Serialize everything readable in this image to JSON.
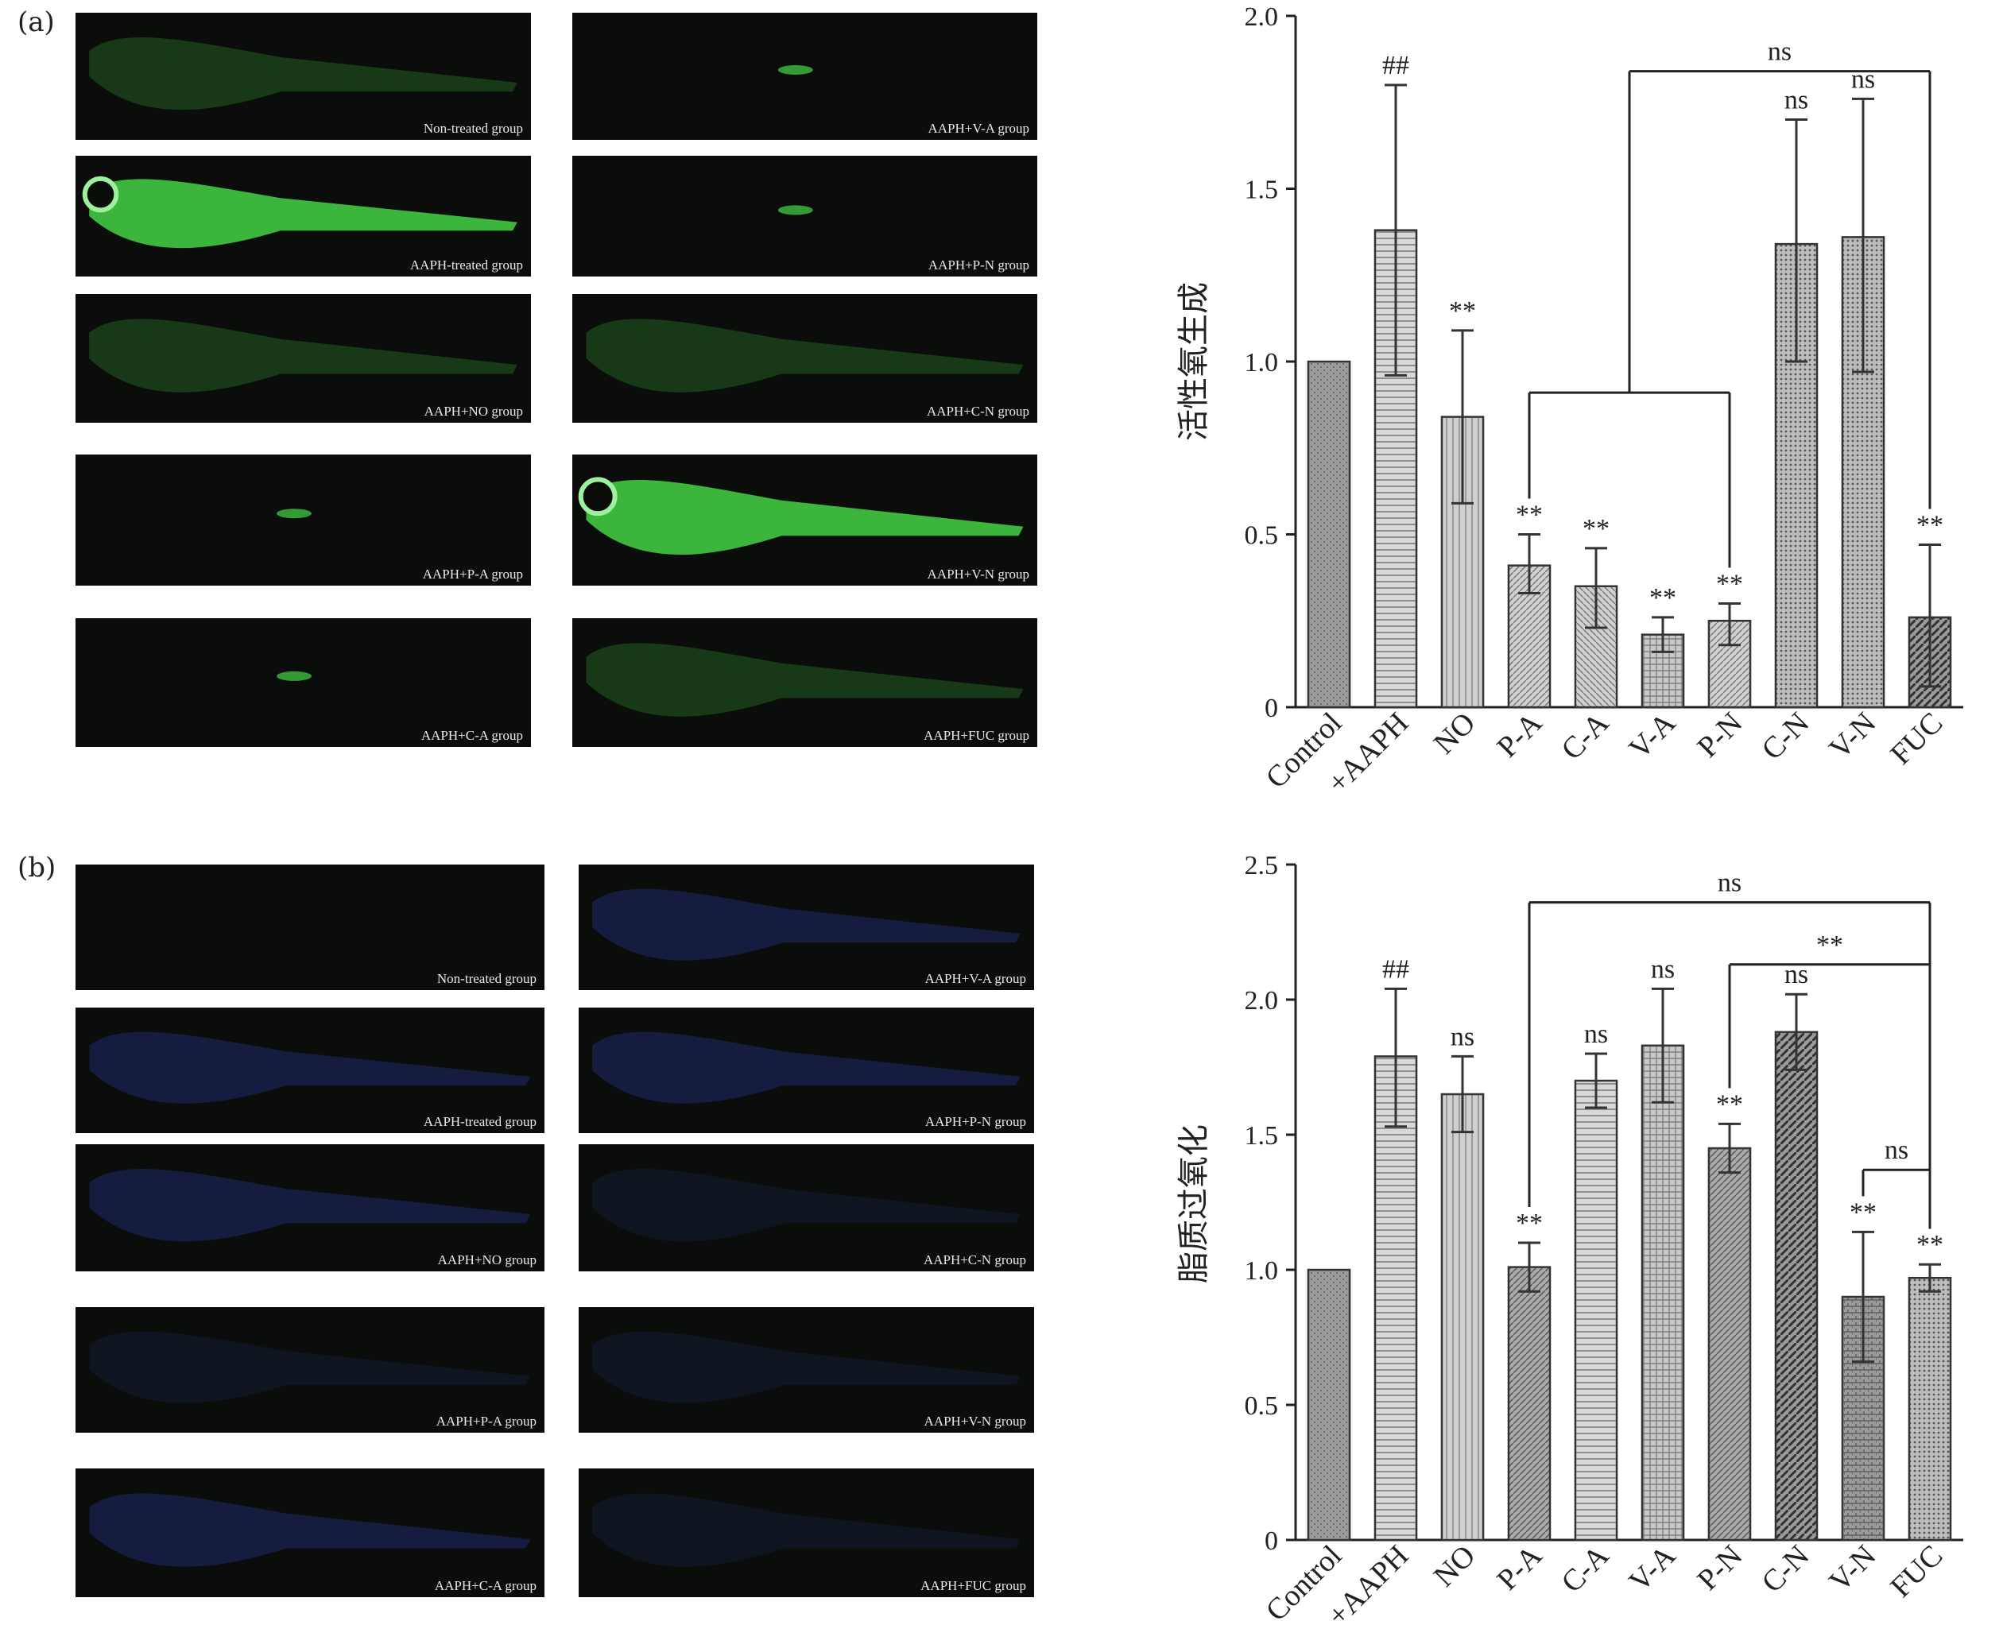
{
  "panel_labels": {
    "a": "(a)",
    "b": "(b)"
  },
  "panel_a_images": {
    "left": [
      {
        "caption": "Non-treated group",
        "glow": "faint"
      },
      {
        "caption": "AAPH-treated group",
        "glow": "bright"
      },
      {
        "caption": "AAPH+NO group",
        "glow": "faint"
      },
      {
        "caption": "AAPH+P-A group",
        "glow": "spot"
      },
      {
        "caption": "AAPH+C-A group",
        "glow": "spot"
      }
    ],
    "right": [
      {
        "caption": "AAPH+V-A group",
        "glow": "spot"
      },
      {
        "caption": "AAPH+P-N group",
        "glow": "spot"
      },
      {
        "caption": "AAPH+C-N group",
        "glow": "faint"
      },
      {
        "caption": "AAPH+V-N group",
        "glow": "bright"
      },
      {
        "caption": "AAPH+FUC group",
        "glow": "faint"
      }
    ],
    "fluorescence_color": "#3fbf3f"
  },
  "panel_b_images": {
    "left": [
      {
        "caption": "Non-treated group",
        "glow": "none"
      },
      {
        "caption": "AAPH-treated group",
        "glow": "blue"
      },
      {
        "caption": "AAPH+NO group",
        "glow": "blue"
      },
      {
        "caption": "AAPH+P-A group",
        "glow": "dim"
      },
      {
        "caption": "AAPH+C-A group",
        "glow": "blue"
      }
    ],
    "right": [
      {
        "caption": "AAPH+V-A group",
        "glow": "blue"
      },
      {
        "caption": "AAPH+P-N group",
        "glow": "blue"
      },
      {
        "caption": "AAPH+C-N group",
        "glow": "dim"
      },
      {
        "caption": "AAPH+V-N group",
        "glow": "dim"
      },
      {
        "caption": "AAPH+FUC group",
        "glow": "dim"
      }
    ],
    "fluorescence_color": "#2a3aa0"
  },
  "chart_data": [
    {
      "type": "bar",
      "title": "",
      "xlabel": "",
      "ylabel": "活性氧生成",
      "ylim": [
        0,
        2.0
      ],
      "yticks": [
        "0",
        "0.5",
        "1.0",
        "1.5",
        "2.0"
      ],
      "categories": [
        "Control",
        "+AAPH",
        "NO",
        "P-A",
        "C-A",
        "V-A",
        "P-N",
        "C-N",
        "V-N",
        "FUC"
      ],
      "values": [
        1.0,
        1.38,
        0.84,
        0.41,
        0.35,
        0.21,
        0.25,
        1.34,
        1.36,
        0.26
      ],
      "error_upper": [
        null,
        1.8,
        1.09,
        0.5,
        0.46,
        0.26,
        0.3,
        1.7,
        1.76,
        0.47
      ],
      "error_lower": [
        null,
        0.96,
        0.59,
        0.33,
        0.23,
        0.16,
        0.18,
        1.0,
        0.97,
        0.06
      ],
      "labels": [
        "",
        "##",
        "**",
        "**",
        "**",
        "**",
        "**",
        "ns",
        "ns",
        "**"
      ],
      "brackets": [
        {
          "from": "P-A",
          "to": "P-N",
          "y": 0.91,
          "text": ""
        },
        {
          "from": "P-A_P-N_mid",
          "to": "FUC",
          "y": 1.84,
          "text": "ns"
        }
      ],
      "grid": false
    },
    {
      "type": "bar",
      "title": "",
      "xlabel": "",
      "ylabel": "脂质过氧化",
      "ylim": [
        0,
        2.5
      ],
      "yticks": [
        "0",
        "0.5",
        "1.0",
        "1.5",
        "2.0",
        "2.5"
      ],
      "categories": [
        "Control",
        "+AAPH",
        "NO",
        "P-A",
        "C-A",
        "V-A",
        "P-N",
        "C-N",
        "V-N",
        "FUC"
      ],
      "values": [
        1.0,
        1.79,
        1.65,
        1.01,
        1.7,
        1.83,
        1.45,
        1.88,
        0.9,
        0.97
      ],
      "error_upper": [
        null,
        2.04,
        1.79,
        1.1,
        1.8,
        2.04,
        1.54,
        2.02,
        1.14,
        1.02
      ],
      "error_lower": [
        null,
        1.53,
        1.51,
        0.92,
        1.6,
        1.62,
        1.36,
        1.74,
        0.66,
        0.92
      ],
      "labels": [
        "",
        "##",
        "ns",
        "**",
        "ns",
        "ns",
        "**",
        "ns",
        "**",
        "**"
      ],
      "brackets": [
        {
          "from": "P-A",
          "to": "FUC",
          "y": 2.36,
          "text": "ns"
        },
        {
          "from": "P-N",
          "to": "FUC",
          "y": 2.13,
          "text": "**"
        },
        {
          "from": "V-N",
          "to": "FUC",
          "y": 1.37,
          "text": "ns"
        }
      ],
      "grid": false
    }
  ]
}
